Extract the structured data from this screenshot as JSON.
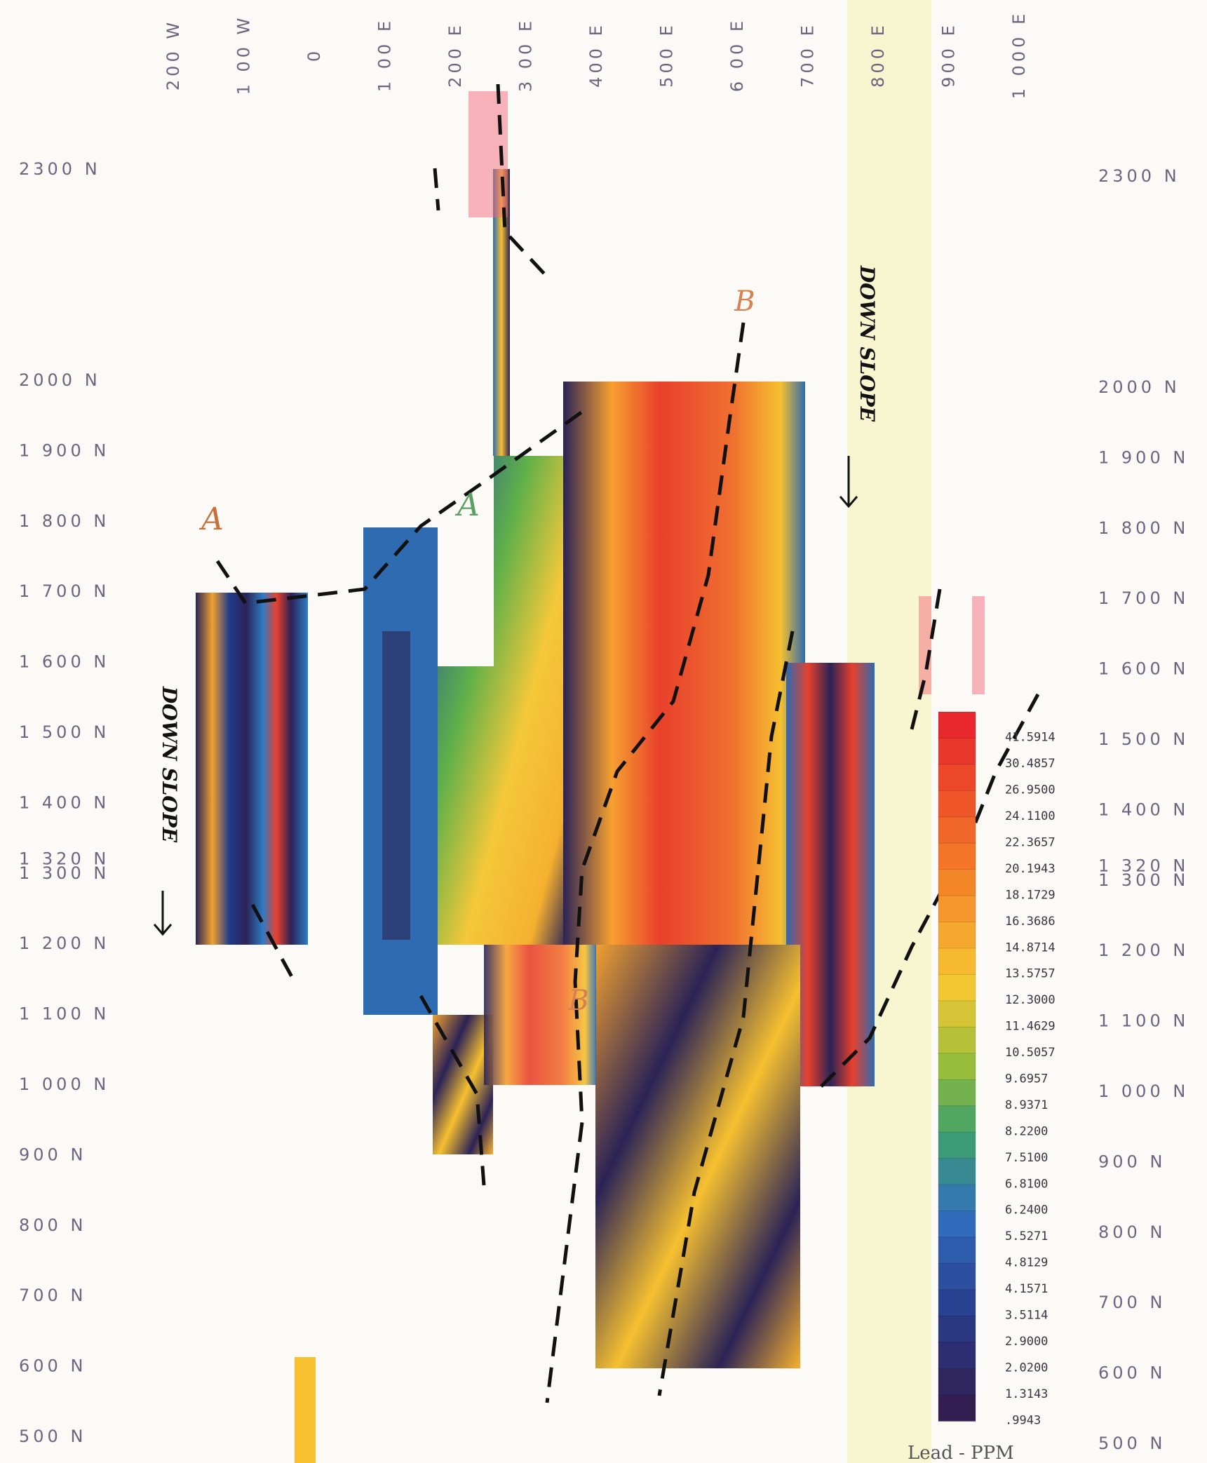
{
  "eastings": [
    {
      "value": -200,
      "label": "200 W"
    },
    {
      "value": -100,
      "label": "1 00 W"
    },
    {
      "value": 0,
      "label": "0"
    },
    {
      "value": 100,
      "label": "1 00 E"
    },
    {
      "value": 200,
      "label": "200 E"
    },
    {
      "value": 300,
      "label": "3 00 E"
    },
    {
      "value": 400,
      "label": "400 E"
    },
    {
      "value": 500,
      "label": "500 E"
    },
    {
      "value": 600,
      "label": "6 00 E"
    },
    {
      "value": 700,
      "label": "700 E"
    },
    {
      "value": 800,
      "label": "800 E"
    },
    {
      "value": 900,
      "label": "900 E"
    },
    {
      "value": 1000,
      "label": "1 000 E"
    }
  ],
  "northings_left": [
    {
      "value": 2300,
      "label": "2300 N"
    },
    {
      "value": 2000,
      "label": "2000 N"
    },
    {
      "value": 1900,
      "label": "1 900 N"
    },
    {
      "value": 1800,
      "label": "1 800 N"
    },
    {
      "value": 1700,
      "label": "1 700 N"
    },
    {
      "value": 1600,
      "label": "1 600 N"
    },
    {
      "value": 1500,
      "label": "1 500 N"
    },
    {
      "value": 1400,
      "label": "1 400 N"
    },
    {
      "value": 1320,
      "label": "1 320 N"
    },
    {
      "value": 1300,
      "label": "1 300 N"
    },
    {
      "value": 1200,
      "label": "1 200 N"
    },
    {
      "value": 1100,
      "label": "1 100 N"
    },
    {
      "value": 1000,
      "label": "1 000 N"
    },
    {
      "value": 900,
      "label": "900 N"
    },
    {
      "value": 800,
      "label": "800 N"
    },
    {
      "value": 700,
      "label": "700 N"
    },
    {
      "value": 600,
      "label": "600 N"
    },
    {
      "value": 500,
      "label": "500 N"
    }
  ],
  "northings_right": [
    {
      "value": 2300,
      "label": "2300 N"
    },
    {
      "value": 2000,
      "label": "2000 N"
    },
    {
      "value": 1900,
      "label": "1 900 N"
    },
    {
      "value": 1800,
      "label": "1 800 N"
    },
    {
      "value": 1700,
      "label": "1 700 N"
    },
    {
      "value": 1600,
      "label": "1 600 N"
    },
    {
      "value": 1500,
      "label": "1 500 N"
    },
    {
      "value": 1400,
      "label": "1 400 N"
    },
    {
      "value": 1320,
      "label": "1 320 N"
    },
    {
      "value": 1300,
      "label": "1 300 N"
    },
    {
      "value": 1200,
      "label": "1 200 N"
    },
    {
      "value": 1100,
      "label": "1 100 N"
    },
    {
      "value": 1000,
      "label": "1 000 N"
    },
    {
      "value": 900,
      "label": "900 N"
    },
    {
      "value": 800,
      "label": "800 N"
    },
    {
      "value": 700,
      "label": "700 N"
    },
    {
      "value": 600,
      "label": "600 N"
    },
    {
      "value": 500,
      "label": "500 N"
    }
  ],
  "legend": {
    "title": "Lead  -  PPM",
    "values": [
      41.5914,
      30.4857,
      {
        "value": 26.95,
        "label": "26.9500"
      },
      {
        "value": 24.11,
        "label": "24.1100"
      },
      22.3657,
      20.1943,
      18.1729,
      16.3686,
      14.8714,
      13.5757,
      {
        "value": 12.3,
        "label": "12.3000"
      },
      11.4629,
      10.5057,
      9.6957,
      8.9371,
      {
        "value": 8.22,
        "label": "8.2200"
      },
      {
        "value": 7.51,
        "label": "7.5100"
      },
      {
        "value": 6.81,
        "label": "6.8100"
      },
      {
        "value": 6.24,
        "label": "6.2400"
      },
      5.5271,
      4.8129,
      4.1571,
      3.5114,
      {
        "value": 2.9,
        "label": "2.9000"
      },
      {
        "value": 2.02,
        "label": "2.0200"
      },
      1.3143,
      {
        "value": 0.9943,
        "label": ".9943"
      }
    ]
  },
  "annotations": {
    "down_slope": [
      "DOWN SLOPE",
      "DOWN SLOPE"
    ],
    "letters": [
      "A",
      "A",
      "B",
      "B"
    ]
  }
}
